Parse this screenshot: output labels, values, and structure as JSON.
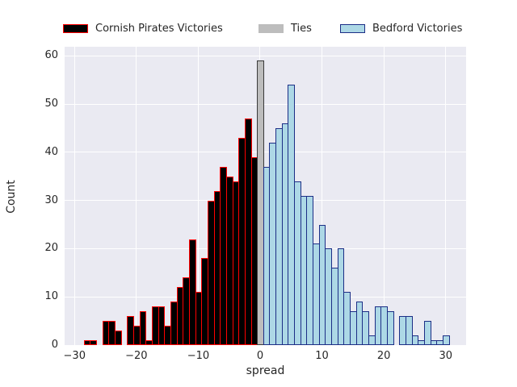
{
  "figure": {
    "background": "#ffffff",
    "plot_background": "#eaeaf2",
    "grid_color": "#ffffff",
    "text_color": "#262626"
  },
  "legend": {
    "items": [
      {
        "label": "Cornish Pirates Victories",
        "fill": "#000000",
        "edge": "#ff0000"
      },
      {
        "label": "Ties",
        "fill": "#bdbdbd",
        "edge": "#bdbdbd"
      },
      {
        "label": "Bedford Victories",
        "fill": "#add8e6",
        "edge": "#1c2e86"
      }
    ]
  },
  "chart_data": {
    "type": "bar",
    "subtype": "histogram",
    "title": "",
    "xlabel": "spread",
    "ylabel": "Count",
    "x_ticks": [
      -30,
      -20,
      -10,
      0,
      10,
      20,
      30
    ],
    "y_ticks": [
      0,
      10,
      20,
      30,
      40,
      50,
      60
    ],
    "xlim": [
      -31.6,
      33.3
    ],
    "ylim": [
      0,
      61.9
    ],
    "bin_width": 1,
    "grid": true,
    "legend_position": "top",
    "series": [
      {
        "name": "Cornish Pirates Victories",
        "fill": "#000000",
        "edge": "#ff0000",
        "centers": [
          -28,
          -27,
          -26,
          -25,
          -24,
          -23,
          -22,
          -21,
          -20,
          -19,
          -18,
          -17,
          -16,
          -15,
          -14,
          -13,
          -12,
          -11,
          -10,
          -9,
          -8,
          -7,
          -6,
          -5,
          -4,
          -3,
          -2,
          -1
        ],
        "counts": [
          1,
          1,
          0,
          5,
          5,
          3,
          0,
          6,
          4,
          7,
          1,
          8,
          8,
          4,
          9,
          12,
          14,
          22,
          11,
          18,
          30,
          32,
          37,
          35,
          34,
          43,
          47,
          39
        ]
      },
      {
        "name": "Ties",
        "fill": "#bdbdbd",
        "edge": "#3a3a3a",
        "centers": [
          0
        ],
        "counts": [
          59
        ]
      },
      {
        "name": "Bedford Victories",
        "fill": "#add8e6",
        "edge": "#1c2e86",
        "centers": [
          1,
          2,
          3,
          4,
          5,
          6,
          7,
          8,
          9,
          10,
          11,
          12,
          13,
          14,
          15,
          16,
          17,
          18,
          19,
          20,
          21,
          22,
          23,
          24,
          25,
          26,
          27,
          28,
          29,
          30
        ],
        "counts": [
          37,
          42,
          45,
          46,
          54,
          34,
          31,
          31,
          21,
          25,
          20,
          16,
          20,
          11,
          7,
          9,
          7,
          2,
          8,
          8,
          7,
          0,
          6,
          6,
          2,
          1,
          5,
          1,
          1,
          2
        ]
      }
    ]
  }
}
